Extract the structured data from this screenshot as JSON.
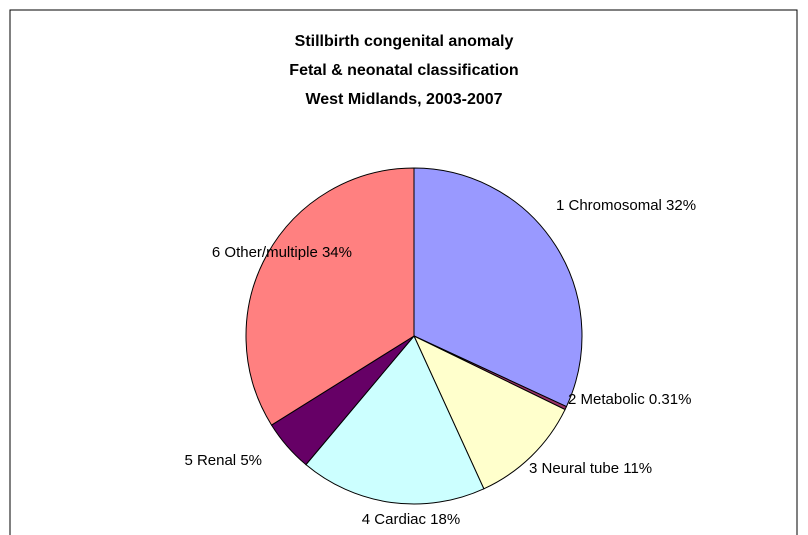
{
  "chart_data": {
    "type": "pie",
    "title": "Stillbirth congenital anomaly",
    "subtitle": [
      "Fetal & neonatal classification",
      "West Midlands, 2003-2007"
    ],
    "categories": [
      "1 Chromosomal",
      "2 Metabolic",
      "3 Neural tube",
      "4 Cardiac",
      "5 Renal",
      "6 Other/multiple"
    ],
    "values": [
      32,
      0.31,
      11,
      18,
      5,
      34
    ],
    "value_labels": [
      "32%",
      "0.31%",
      "11%",
      "18%",
      "5%",
      "34%"
    ],
    "colors": [
      "#9999ff",
      "#993366",
      "#ffffcc",
      "#ccffff",
      "#660066",
      "#ff8080"
    ]
  }
}
